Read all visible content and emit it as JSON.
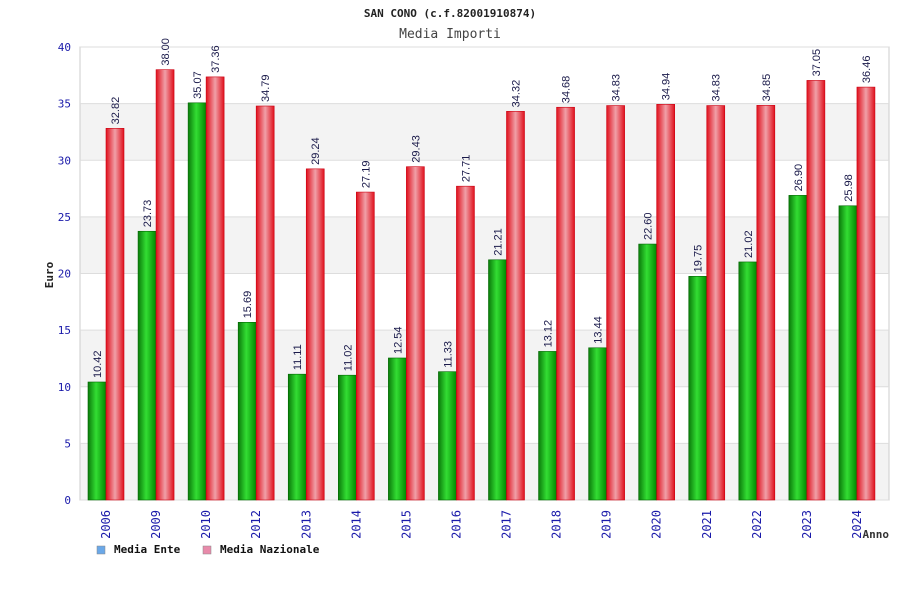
{
  "chart_data": {
    "type": "bar",
    "title": "SAN CONO (c.f.82001910874)",
    "subtitle": "Media Importi",
    "xlabel": "Anno",
    "ylabel": "Euro",
    "ylim": [
      0,
      40
    ],
    "yticks": [
      0,
      5,
      10,
      15,
      20,
      25,
      30,
      35,
      40
    ],
    "grid": true,
    "legend_position": "bottom-left",
    "categories": [
      "2006",
      "2009",
      "2010",
      "2012",
      "2013",
      "2014",
      "2015",
      "2016",
      "2017",
      "2018",
      "2019",
      "2020",
      "2021",
      "2022",
      "2023",
      "2024"
    ],
    "series": [
      {
        "name": "Media Ente",
        "bar_color": "#00aa00",
        "legend_color": "#6aa8e8",
        "values": [
          10.42,
          23.73,
          35.07,
          15.69,
          11.11,
          11.02,
          12.54,
          11.33,
          21.21,
          13.12,
          13.44,
          22.6,
          19.75,
          21.02,
          26.9,
          25.98
        ],
        "labels": [
          "10.42",
          "23.73",
          "35.07",
          "15.69",
          "11.11",
          "11.02",
          "12.54",
          "11.33",
          "21.21",
          "13.12",
          "13.44",
          "22.60",
          "19.75",
          "21.02",
          "26.90",
          "25.98"
        ]
      },
      {
        "name": "Media Nazionale",
        "bar_color": "#ee1122",
        "legend_color": "#e88aaa",
        "values": [
          32.82,
          38.0,
          37.36,
          34.79,
          29.24,
          27.19,
          29.43,
          27.71,
          34.32,
          34.68,
          34.83,
          34.94,
          34.83,
          34.85,
          37.05,
          36.46
        ],
        "labels": [
          "32.82",
          "38.00",
          "37.36",
          "34.79",
          "29.24",
          "27.19",
          "29.43",
          "27.71",
          "34.32",
          "34.68",
          "34.83",
          "34.94",
          "34.83",
          "34.85",
          "37.05",
          "36.46"
        ]
      }
    ]
  }
}
